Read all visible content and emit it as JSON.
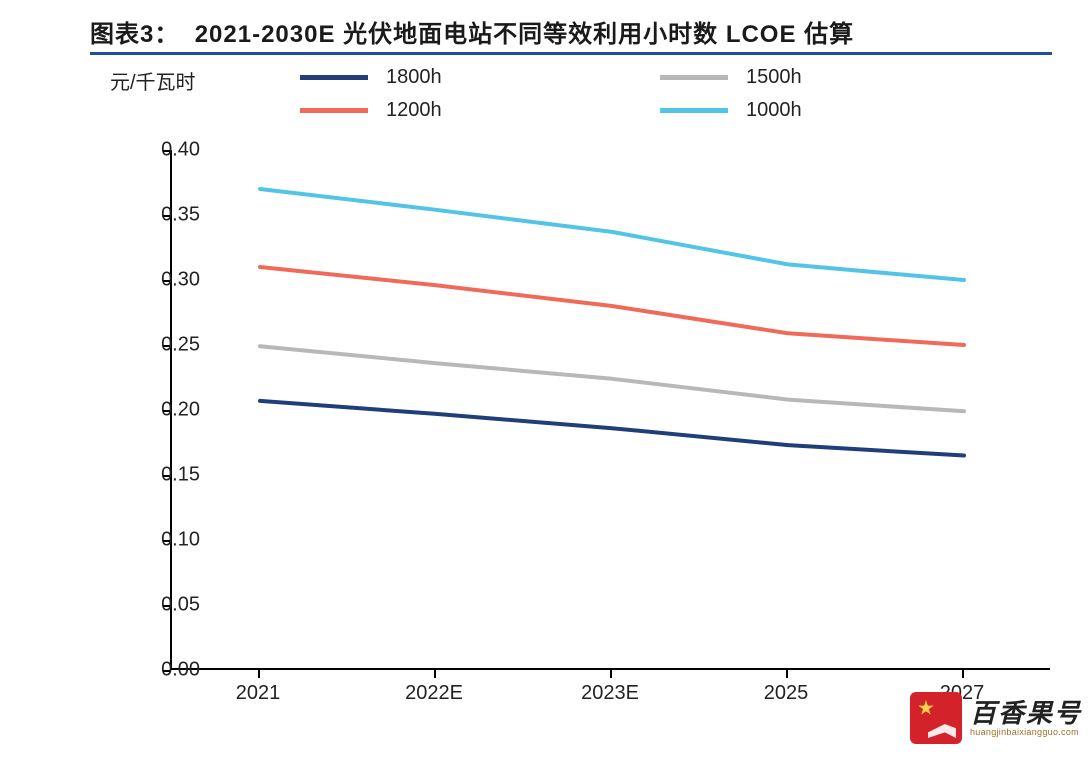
{
  "title": {
    "prefix": "图表3：",
    "text": "2021-2030E 光伏地面电站不同等效利用小时数 LCOE 估算"
  },
  "chart": {
    "type": "line",
    "y_axis_label": "元/千瓦时",
    "ylim": [
      0.0,
      0.4
    ],
    "ytick_step": 0.05,
    "yticks": [
      "0.00",
      "0.05",
      "0.10",
      "0.15",
      "0.20",
      "0.25",
      "0.30",
      "0.35",
      "0.40"
    ],
    "x_categories": [
      "2021",
      "2022E",
      "2023E",
      "2025",
      "2027"
    ],
    "x_positions": [
      0.1,
      0.3,
      0.5,
      0.7,
      0.9
    ],
    "background_color": "#ffffff",
    "axis_color": "#000000",
    "title_sep_color": "#1f4e9c",
    "line_width": 4,
    "series": [
      {
        "name": "1800h",
        "color": "#1f3e7a",
        "values": [
          0.207,
          0.197,
          0.186,
          0.173,
          0.165
        ]
      },
      {
        "name": "1500h",
        "color": "#b8b8b8",
        "values": [
          0.249,
          0.236,
          0.224,
          0.208,
          0.199
        ]
      },
      {
        "name": "1200h",
        "color": "#f06a5a",
        "values": [
          0.31,
          0.296,
          0.28,
          0.259,
          0.25
        ]
      },
      {
        "name": "1000h",
        "color": "#52c4e6",
        "values": [
          0.37,
          0.354,
          0.337,
          0.312,
          0.3
        ]
      }
    ],
    "legend_order": [
      0,
      1,
      2,
      3
    ],
    "label_fontsize": 20,
    "title_fontsize": 24
  },
  "watermark": {
    "cn": "百香果号",
    "en": "huangjinbaixiangguo.com",
    "logo_bg": "#d4222a",
    "star_color": "#ffd24a"
  }
}
